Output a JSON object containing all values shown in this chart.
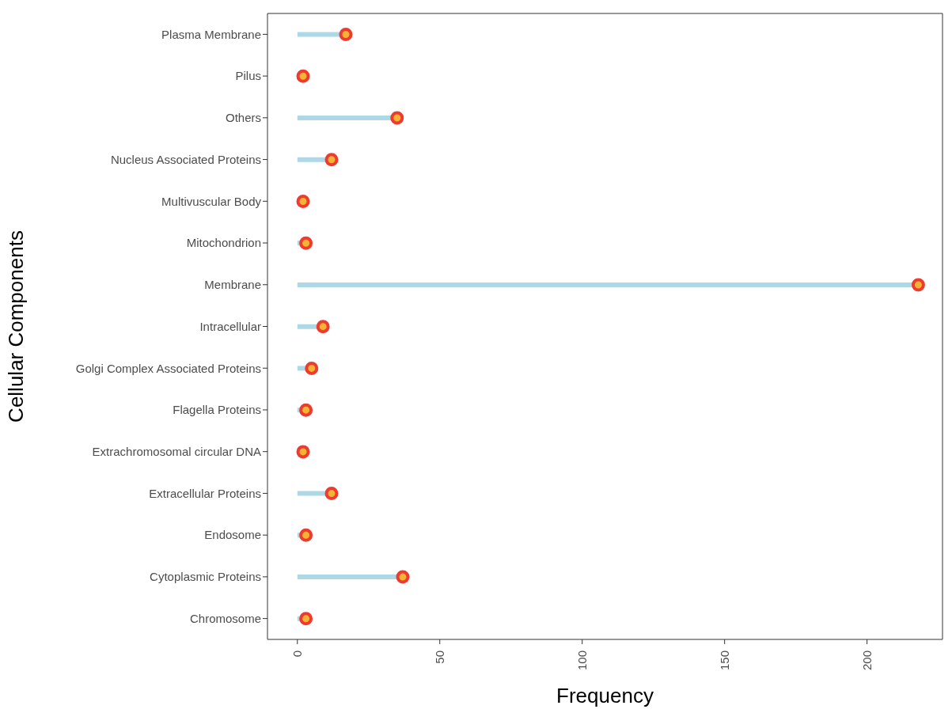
{
  "chart_data": {
    "type": "lollipop",
    "orientation": "horizontal",
    "xlabel": "Frequency",
    "ylabel": "Cellular Components",
    "categories": [
      "Plasma Membrane",
      "Pilus",
      "Others",
      "Nucleus Associated Proteins",
      "Multivuscular Body",
      "Mitochondrion",
      "Membrane",
      "Intracellular",
      "Golgi Complex Associated Proteins",
      "Flagella Proteins",
      "Extrachromosomal circular DNA",
      "Extracellular Proteins",
      "Endosome",
      "Cytoplasmic Proteins",
      "Chromosome"
    ],
    "series": [
      {
        "color": "#ee3b2f",
        "values": [
          17,
          2,
          35,
          12,
          2,
          3,
          218,
          9,
          5,
          3,
          2,
          12,
          3,
          37,
          3
        ]
      }
    ],
    "xlim": [
      -10.5,
      226.5
    ],
    "xticks": [
      0,
      50,
      100,
      150,
      200
    ],
    "legend": false,
    "marker": "circle"
  }
}
